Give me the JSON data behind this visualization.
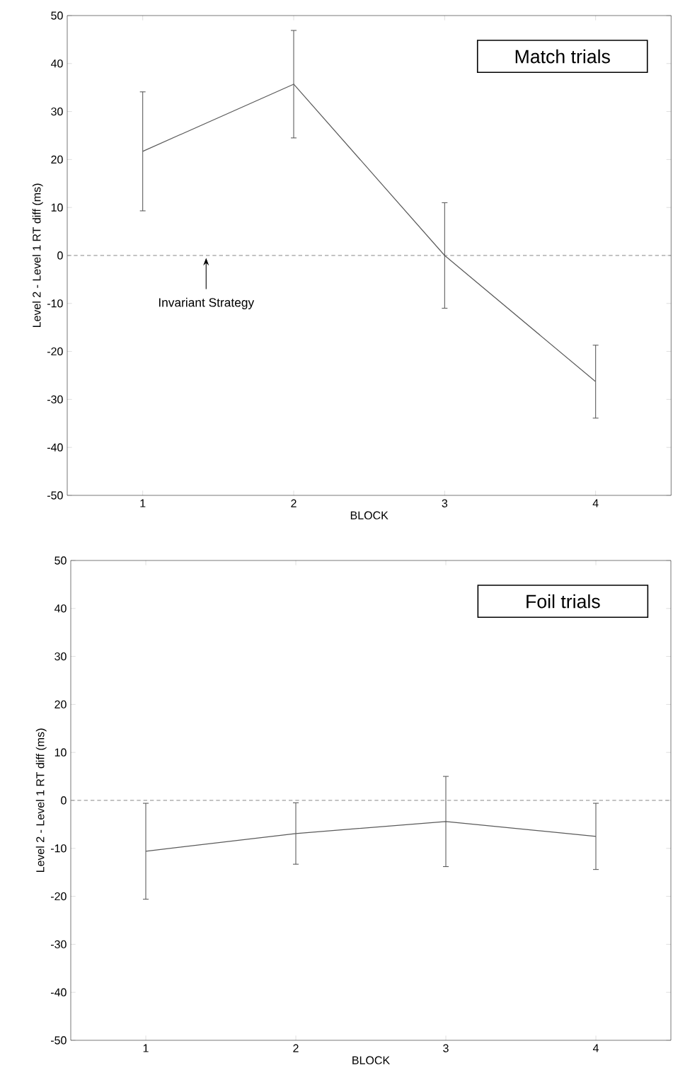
{
  "chart_data": [
    {
      "type": "line",
      "x": [
        1,
        2,
        3,
        4
      ],
      "xlim": [
        0.5,
        4.5
      ],
      "xticks": [
        1,
        2,
        3,
        4
      ],
      "ylim": [
        -50,
        50
      ],
      "yticks": [
        -50,
        -40,
        -30,
        -20,
        -10,
        0,
        10,
        20,
        30,
        40,
        50
      ],
      "xlabel": "BLOCK",
      "ylabel": "Level 2 - Level 1 RT diff (ms)",
      "color": "#5a5a5a",
      "values": [
        21.7,
        35.7,
        0,
        -26.3
      ],
      "errors": [
        12.4,
        11.2,
        11,
        7.6
      ],
      "ref_lines": [
        {
          "axis": "y",
          "value": 0,
          "line_style": "dashed",
          "color": "#888888"
        }
      ],
      "annotations": [
        "Match trials",
        "Invariant Strategy"
      ]
    },
    {
      "type": "line",
      "x": [
        1,
        2,
        3,
        4
      ],
      "xlim": [
        0.5,
        4.5
      ],
      "xticks": [
        1,
        2,
        3,
        4
      ],
      "ylim": [
        -50,
        50
      ],
      "yticks": [
        -50,
        -40,
        -30,
        -20,
        -10,
        0,
        10,
        20,
        30,
        40,
        50
      ],
      "xlabel": "BLOCK",
      "ylabel": "Level 2 - Level 1 RT diff (ms)",
      "color": "#5a5a5a",
      "values": [
        -10.6,
        -6.9,
        -4.4,
        -7.5
      ],
      "errors": [
        10,
        6.4,
        9.4,
        6.9
      ],
      "ref_lines": [
        {
          "axis": "y",
          "value": 0,
          "line_style": "dashed",
          "color": "#888888"
        }
      ],
      "annotations": [
        "Foil trials"
      ]
    }
  ]
}
